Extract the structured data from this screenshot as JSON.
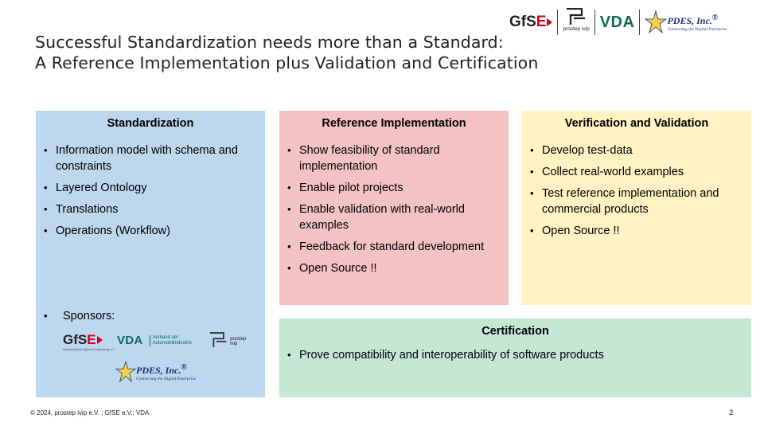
{
  "slide": {
    "title_line1": "Successful Standardization needs more than a Standard:",
    "title_line2": "A Reference Implementation plus Validation and Certification",
    "footer": "© 2024, prostep ivip e.V. ; GfSE e.V.; VDA",
    "page_number": "2"
  },
  "logos": {
    "gfse_main": "GfS",
    "gfse_accent": "E",
    "prostep": "prostep ivip",
    "vda": "VDA",
    "pdes_name": "PDES, Inc.",
    "pdes_reg": "®",
    "pdes_tagline": "Connecting the Digital Enterprise",
    "brand_colors": {
      "gfse_red": "#d6001c",
      "vda_green": "#0f6c55",
      "pdes_blue": "#1a2f7a"
    }
  },
  "boxes": {
    "standardization": {
      "title": "Standardization",
      "color": "#bdd7ee",
      "items": [
        "Information model with schema and constraints",
        "Layered Ontology",
        "Translations",
        "Operations (Workflow)"
      ],
      "sponsors_label": "Sponsors:",
      "sponsor_logos": {
        "gfse_sub": "Gesellschaft für Systems Engineering e.V.",
        "vda_text1": "Verband der",
        "vda_text2": "Automobilindustrie",
        "prostep": "prostep ivip",
        "pdes_name": "PDES, Inc.",
        "pdes_tagline": "Connecting the Digital Enterprise"
      }
    },
    "reference": {
      "title": "Reference Implementation",
      "color": "#f4c2c3",
      "items": [
        "Show feasibility of standard implementation",
        "Enable pilot projects",
        "Enable validation with real-world examples",
        "Feedback for standard development",
        "Open Source !!"
      ]
    },
    "verification": {
      "title": "Verification and Validation",
      "color": "#fff2c3",
      "items": [
        "Develop test-data",
        "Collect real-world examples",
        "Test reference implementation and commercial products",
        "Open Source !!"
      ]
    },
    "certification": {
      "title": "Certification",
      "color": "#c4e8d3",
      "items": [
        "Prove compatibility and interoperability of software products"
      ]
    }
  }
}
